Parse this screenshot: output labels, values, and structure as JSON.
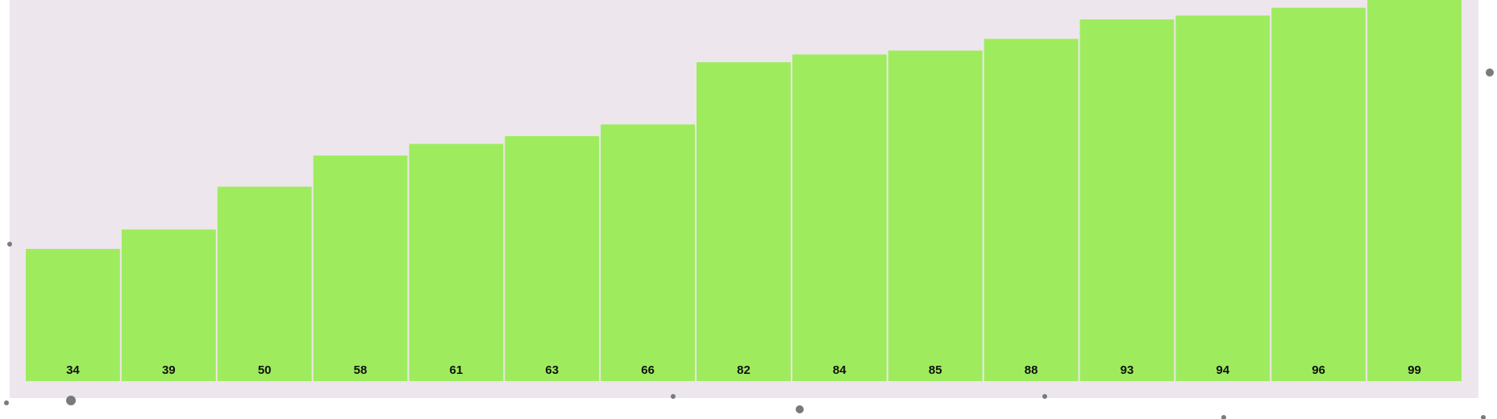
{
  "chart_data": {
    "type": "bar",
    "categories": [
      "34",
      "39",
      "50",
      "58",
      "61",
      "63",
      "66",
      "82",
      "84",
      "85",
      "88",
      "93",
      "94",
      "96",
      "99"
    ],
    "values": [
      34,
      39,
      50,
      58,
      61,
      63,
      66,
      82,
      84,
      85,
      88,
      93,
      94,
      96,
      99
    ],
    "title": "",
    "xlabel": "",
    "ylabel": "",
    "ylim": [
      0,
      98
    ],
    "grid": false,
    "legend": "none",
    "data_labels": "inside-bottom"
  },
  "colors": {
    "plot_background": "#ede6ec",
    "bar_fill": "#9eec5e",
    "bar_separator": "#ffffff",
    "decorative_dots": "#7a7a7a"
  }
}
